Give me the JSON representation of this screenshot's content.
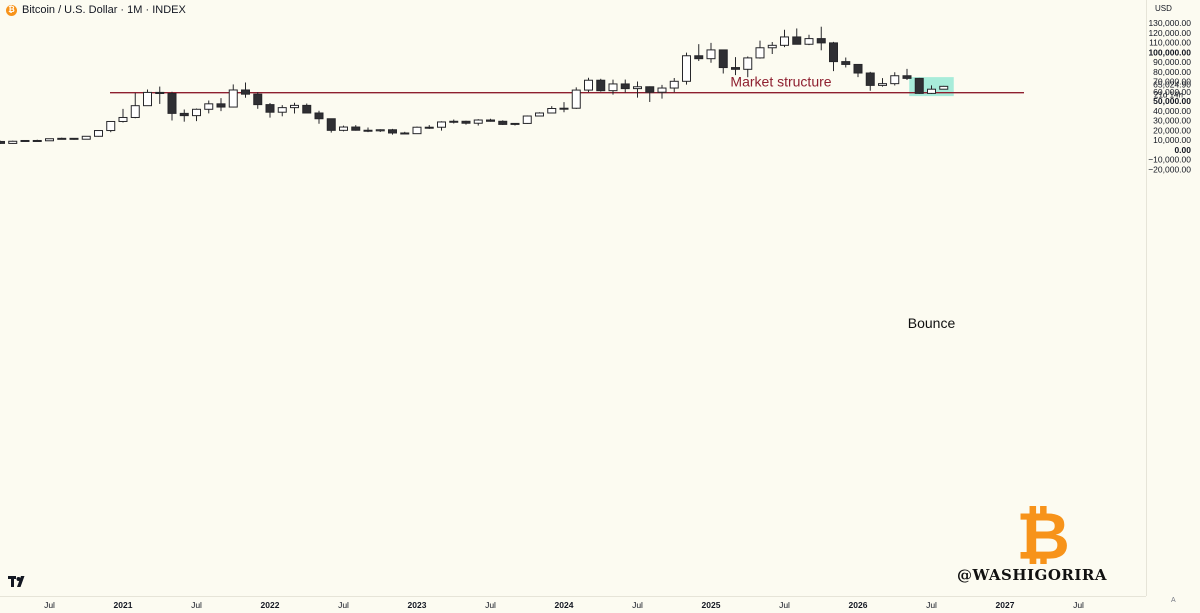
{
  "header": {
    "coin_icon": "bitcoin-icon",
    "title": "Bitcoin / U.S. Dollar · 1M · INDEX"
  },
  "axis": {
    "currency": "USD",
    "scale_mode": "A"
  },
  "branding": {
    "tradingview_logo": "tv-logo-icon",
    "watermark_icon": "bitcoin-b-icon",
    "handle": "@WASHIGORIRA"
  },
  "colors": {
    "background": "#fcfbf1",
    "up_candle": "#ffffff",
    "down_candle": "#2f2f33",
    "candle_border": "#26262a",
    "support_line": "#8e1f2f",
    "highlight_box": "#6fe3cc",
    "watermark": "#f7931a"
  },
  "chart_data": {
    "type": "candlestick",
    "title": "Bitcoin / U.S. Dollar · 1M · INDEX",
    "xlabel": "",
    "ylabel": "USD",
    "ylim": [
      -22000,
      132000
    ],
    "y_ticks": [
      {
        "value": 130000,
        "label": "130,000.00"
      },
      {
        "value": 120000,
        "label": "120,000.00"
      },
      {
        "value": 110000,
        "label": "110,000.00"
      },
      {
        "value": 100000,
        "label": "100,000.00"
      },
      {
        "value": 90000,
        "label": "90,000.00"
      },
      {
        "value": 80000,
        "label": "80,000.00"
      },
      {
        "value": 70000,
        "label": "70,000.00"
      },
      {
        "value": 60000,
        "label": "60,000.00"
      },
      {
        "value": 50000,
        "label": "50,000.00"
      },
      {
        "value": 40000,
        "label": "40,000.00"
      },
      {
        "value": 30000,
        "label": "30,000.00"
      },
      {
        "value": 20000,
        "label": "20,000.00"
      },
      {
        "value": 10000,
        "label": "10,000.00"
      },
      {
        "value": 0,
        "label": "0.00"
      },
      {
        "value": -10000,
        "label": "−10,000.00"
      },
      {
        "value": -20000,
        "label": "−20,000.00"
      }
    ],
    "x_ticks": [
      {
        "date": "2020-07",
        "label": "Jul"
      },
      {
        "date": "2021-01",
        "label": "2021"
      },
      {
        "date": "2021-07",
        "label": "Jul"
      },
      {
        "date": "2022-01",
        "label": "2022"
      },
      {
        "date": "2022-07",
        "label": "Jul"
      },
      {
        "date": "2023-01",
        "label": "2023"
      },
      {
        "date": "2023-07",
        "label": "Jul"
      },
      {
        "date": "2024-01",
        "label": "2024"
      },
      {
        "date": "2024-07",
        "label": "Jul"
      },
      {
        "date": "2025-01",
        "label": "2025"
      },
      {
        "date": "2025-07",
        "label": "Jul"
      },
      {
        "date": "2026-01",
        "label": "2026"
      },
      {
        "date": "2026-07",
        "label": "Jul"
      },
      {
        "date": "2027-01",
        "label": "2027"
      },
      {
        "date": "2027-07",
        "label": "Jul"
      }
    ],
    "candles": [
      {
        "date": "2020-03",
        "open": 8500,
        "high": 9200,
        "low": 6000,
        "close": 6500
      },
      {
        "date": "2020-04",
        "open": 6500,
        "high": 9300,
        "low": 6200,
        "close": 8700
      },
      {
        "date": "2020-05",
        "open": 8700,
        "high": 10000,
        "low": 8200,
        "close": 9500
      },
      {
        "date": "2020-06",
        "open": 9500,
        "high": 10300,
        "low": 9000,
        "close": 9200
      },
      {
        "date": "2020-07",
        "open": 9200,
        "high": 11300,
        "low": 9000,
        "close": 11300
      },
      {
        "date": "2020-08",
        "open": 11300,
        "high": 12400,
        "low": 11000,
        "close": 11700
      },
      {
        "date": "2020-09",
        "open": 11700,
        "high": 12000,
        "low": 10200,
        "close": 10800
      },
      {
        "date": "2020-10",
        "open": 10800,
        "high": 14000,
        "low": 10500,
        "close": 13800
      },
      {
        "date": "2020-11",
        "open": 13800,
        "high": 19500,
        "low": 13500,
        "close": 19700
      },
      {
        "date": "2020-12",
        "open": 19700,
        "high": 29000,
        "low": 18000,
        "close": 29000
      },
      {
        "date": "2021-01",
        "open": 29000,
        "high": 41900,
        "low": 28000,
        "close": 33100
      },
      {
        "date": "2021-02",
        "open": 33100,
        "high": 58300,
        "low": 32300,
        "close": 45200
      },
      {
        "date": "2021-03",
        "open": 45200,
        "high": 61800,
        "low": 44900,
        "close": 58800
      },
      {
        "date": "2021-04",
        "open": 58800,
        "high": 64800,
        "low": 47000,
        "close": 57700
      },
      {
        "date": "2021-05",
        "open": 57700,
        "high": 59500,
        "low": 30000,
        "close": 37300
      },
      {
        "date": "2021-06",
        "open": 37300,
        "high": 41300,
        "low": 28800,
        "close": 35000
      },
      {
        "date": "2021-07",
        "open": 35000,
        "high": 42300,
        "low": 29300,
        "close": 41500
      },
      {
        "date": "2021-08",
        "open": 41500,
        "high": 50500,
        "low": 37300,
        "close": 47100
      },
      {
        "date": "2021-09",
        "open": 47100,
        "high": 52900,
        "low": 39600,
        "close": 43800
      },
      {
        "date": "2021-10",
        "open": 43800,
        "high": 67000,
        "low": 43300,
        "close": 61300
      },
      {
        "date": "2021-11",
        "open": 61300,
        "high": 69000,
        "low": 53300,
        "close": 57000
      },
      {
        "date": "2021-12",
        "open": 57000,
        "high": 59100,
        "low": 42000,
        "close": 46300
      },
      {
        "date": "2022-01",
        "open": 46300,
        "high": 47900,
        "low": 33000,
        "close": 38500
      },
      {
        "date": "2022-02",
        "open": 38500,
        "high": 45800,
        "low": 34300,
        "close": 43200
      },
      {
        "date": "2022-03",
        "open": 43200,
        "high": 48200,
        "low": 37200,
        "close": 45500
      },
      {
        "date": "2022-04",
        "open": 45500,
        "high": 47400,
        "low": 37600,
        "close": 37700
      },
      {
        "date": "2022-05",
        "open": 37700,
        "high": 40000,
        "low": 26700,
        "close": 31800
      },
      {
        "date": "2022-06",
        "open": 31800,
        "high": 31900,
        "low": 17600,
        "close": 19900
      },
      {
        "date": "2022-07",
        "open": 19900,
        "high": 24700,
        "low": 18800,
        "close": 23300
      },
      {
        "date": "2022-08",
        "open": 23300,
        "high": 25200,
        "low": 19600,
        "close": 20000
      },
      {
        "date": "2022-09",
        "open": 20000,
        "high": 22800,
        "low": 18100,
        "close": 19400
      },
      {
        "date": "2022-10",
        "open": 19400,
        "high": 21000,
        "low": 18200,
        "close": 20500
      },
      {
        "date": "2022-11",
        "open": 20500,
        "high": 21400,
        "low": 15500,
        "close": 17200
      },
      {
        "date": "2022-12",
        "open": 17200,
        "high": 18400,
        "low": 16300,
        "close": 16500
      },
      {
        "date": "2023-01",
        "open": 16500,
        "high": 23900,
        "low": 16500,
        "close": 23100
      },
      {
        "date": "2023-02",
        "open": 23100,
        "high": 25300,
        "low": 21400,
        "close": 23100
      },
      {
        "date": "2023-03",
        "open": 23100,
        "high": 29200,
        "low": 19600,
        "close": 28500
      },
      {
        "date": "2023-04",
        "open": 28500,
        "high": 31000,
        "low": 26900,
        "close": 29200
      },
      {
        "date": "2023-05",
        "open": 29200,
        "high": 29800,
        "low": 25800,
        "close": 27200
      },
      {
        "date": "2023-06",
        "open": 27200,
        "high": 31400,
        "low": 24800,
        "close": 30500
      },
      {
        "date": "2023-07",
        "open": 30500,
        "high": 31800,
        "low": 28900,
        "close": 29200
      },
      {
        "date": "2023-08",
        "open": 29200,
        "high": 30200,
        "low": 25400,
        "close": 26000
      },
      {
        "date": "2023-09",
        "open": 26000,
        "high": 27500,
        "low": 24900,
        "close": 27000
      },
      {
        "date": "2023-10",
        "open": 27000,
        "high": 35200,
        "low": 26600,
        "close": 34600
      },
      {
        "date": "2023-11",
        "open": 34600,
        "high": 38400,
        "low": 34100,
        "close": 37700
      },
      {
        "date": "2023-12",
        "open": 37700,
        "high": 44700,
        "low": 37600,
        "close": 42300
      },
      {
        "date": "2024-01",
        "open": 42300,
        "high": 48900,
        "low": 38500,
        "close": 42600
      },
      {
        "date": "2024-02",
        "open": 42600,
        "high": 64000,
        "low": 41900,
        "close": 61200
      },
      {
        "date": "2024-03",
        "open": 61200,
        "high": 73800,
        "low": 59200,
        "close": 71300
      },
      {
        "date": "2024-04",
        "open": 71300,
        "high": 72800,
        "low": 59600,
        "close": 60600
      },
      {
        "date": "2024-05",
        "open": 60600,
        "high": 71900,
        "low": 56600,
        "close": 67500
      },
      {
        "date": "2024-06",
        "open": 67500,
        "high": 72000,
        "low": 58600,
        "close": 62700
      },
      {
        "date": "2024-07",
        "open": 62700,
        "high": 70000,
        "low": 53500,
        "close": 64600
      },
      {
        "date": "2024-08",
        "open": 64600,
        "high": 65000,
        "low": 49000,
        "close": 59000
      },
      {
        "date": "2024-09",
        "open": 59000,
        "high": 66500,
        "low": 52500,
        "close": 63300
      },
      {
        "date": "2024-10",
        "open": 63300,
        "high": 73600,
        "low": 58900,
        "close": 70200
      },
      {
        "date": "2024-11",
        "open": 70200,
        "high": 99600,
        "low": 66800,
        "close": 96400
      },
      {
        "date": "2024-12",
        "open": 96400,
        "high": 108300,
        "low": 91000,
        "close": 93400
      },
      {
        "date": "2025-01",
        "open": 93400,
        "high": 109600,
        "low": 89200,
        "close": 102400
      },
      {
        "date": "2025-02",
        "open": 102400,
        "high": 102500,
        "low": 78200,
        "close": 84300
      },
      {
        "date": "2025-03",
        "open": 84300,
        "high": 95000,
        "low": 76600,
        "close": 82500
      },
      {
        "date": "2025-04",
        "open": 82500,
        "high": 95700,
        "low": 74400,
        "close": 94200
      },
      {
        "date": "2025-05",
        "open": 94200,
        "high": 111900,
        "low": 93400,
        "close": 104600
      },
      {
        "date": "2025-06",
        "open": 104600,
        "high": 110500,
        "low": 98200,
        "close": 107100
      },
      {
        "date": "2025-07",
        "open": 107100,
        "high": 123100,
        "low": 105200,
        "close": 115700
      },
      {
        "date": "2025-08",
        "open": 115700,
        "high": 124400,
        "low": 108100,
        "close": 108200
      },
      {
        "date": "2025-09",
        "open": 108200,
        "high": 117900,
        "low": 107300,
        "close": 114000
      },
      {
        "date": "2025-10",
        "open": 114000,
        "high": 126200,
        "low": 102000,
        "close": 109600
      },
      {
        "date": "2025-11",
        "open": 109600,
        "high": 110600,
        "low": 80600,
        "close": 90400
      },
      {
        "date": "2025-12",
        "open": 90400,
        "high": 94600,
        "low": 84400,
        "close": 87500
      },
      {
        "date": "2026-01",
        "open": 87500,
        "high": 87800,
        "low": 74500,
        "close": 78700
      },
      {
        "date": "2026-02",
        "open": 78700,
        "high": 79900,
        "low": 60500,
        "close": 66000
      },
      {
        "date": "2026-03",
        "open": 66000,
        "high": 73500,
        "low": 64700,
        "close": 67800
      },
      {
        "date": "2026-04",
        "open": 67800,
        "high": 79500,
        "low": 65900,
        "close": 75900
      },
      {
        "date": "2026-05",
        "open": 75900,
        "high": 82900,
        "low": 71500,
        "close": 73200
      },
      {
        "date": "2026-06",
        "open": 73200,
        "high": 73700,
        "low": 57300,
        "close": 57800
      },
      {
        "date": "2026-07",
        "open": 57800,
        "high": 66000,
        "low": 57300,
        "close": 62100
      },
      {
        "date": "2026-08",
        "open": 62100,
        "high": 65500,
        "low": 61800,
        "close": 65025
      }
    ],
    "support_line": {
      "value": 58500,
      "from": "2020-03",
      "to": "2027-05",
      "label": "Market structure"
    },
    "highlight": {
      "from": "2026-06",
      "to": "2026-08",
      "y_low": 55000,
      "y_high": 74500,
      "label": "Bounce"
    },
    "last_price": {
      "value": 65024.9,
      "label": "65,024.90",
      "countdown": "21d 14h"
    },
    "grid": false,
    "legend": "none"
  }
}
